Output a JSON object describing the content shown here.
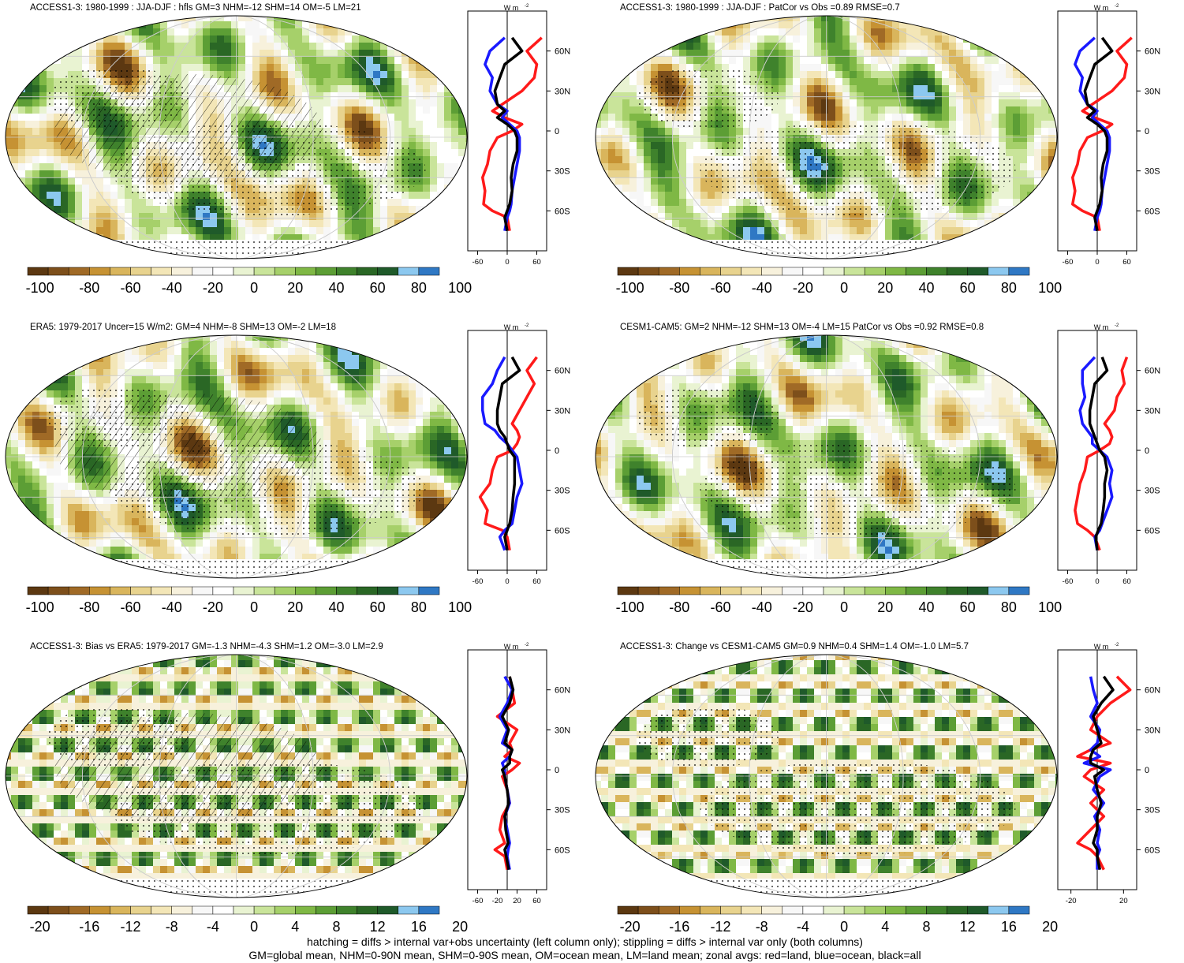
{
  "panels": [
    {
      "title": "ACCESS1-3: 1980-1999 : JJA-DJF : hfls GM=3 NHM=-12 SHM=14 OM=-5 LM=21",
      "hatch": true,
      "palette": "full"
    },
    {
      "title": "ACCESS1-3: 1980-1999 : JJA-DJF : PatCor vs Obs =0.89 RMSE=0.7",
      "hatch": false,
      "palette": "full"
    },
    {
      "title": "ERA5: 1979-2017 Uncer=15 W/m2: GM=4 NHM=-8 SHM=13 OM=-2 LM=18",
      "hatch": true,
      "palette": "full"
    },
    {
      "title": "CESM1-CAM5: GM=2 NHM=-12 SHM=13 OM=-4 LM=15 PatCor vs Obs =0.92 RMSE=0.8",
      "hatch": false,
      "palette": "full"
    },
    {
      "title": "ACCESS1-3: Bias vs ERA5: 1979-2017 GM=-1.3 NHM=-4.3 SHM=1.2 OM=-3.0 LM=2.9",
      "hatch": true,
      "palette": "diff"
    },
    {
      "title": "ACCESS1-3: Change vs CESM1-CAM5 GM=0.9 NHM=0.4 SHM=1.4 OM=-1.0 LM=5.7",
      "hatch": false,
      "palette": "diff"
    }
  ],
  "colorbars": {
    "full": {
      "labels": [
        "-100",
        "-80",
        "-60",
        "-40",
        "-20",
        "0",
        "20",
        "40",
        "60",
        "80",
        "100"
      ]
    },
    "diff": {
      "labels": [
        "-20",
        "-16",
        "-12",
        "-8",
        "-4",
        "0",
        "4",
        "8",
        "12",
        "16",
        "20"
      ]
    },
    "colors": [
      "#5c3811",
      "#7d4f1b",
      "#a06a26",
      "#c69233",
      "#d9b55c",
      "#e8d38e",
      "#f3e6b7",
      "#f7f1dc",
      "#f7f7f7",
      "#ffffff",
      "#e9f3d2",
      "#c9e49a",
      "#a6d06a",
      "#7fb845",
      "#5c9e35",
      "#3f822c",
      "#2a6725",
      "#1f5a2a",
      "#8cc8ef",
      "#2f78c4"
    ]
  },
  "zonal_unit": "W m",
  "zonal_unit_exp": "-2",
  "lat_labels": [
    "60N",
    "30N",
    "0",
    "30S",
    "60S"
  ],
  "zonal_xticks": {
    "full": [
      "-60",
      "0",
      "60"
    ],
    "diff_left": [
      "-60",
      "-20",
      "20",
      "60"
    ],
    "diff_right": [
      "-20",
      "20"
    ]
  },
  "footer": [
    "hatching = diffs > internal var+obs uncertainty (left column only); stippling = diffs > internal var only (both columns)",
    "GM=global mean, NHM=0-90N mean, SHM=0-90S mean, OM=ocean mean, LM=land mean; zonal avgs: red=land, blue=ocean, black=all"
  ],
  "chart_data": [
    {
      "type": "line",
      "title": "ACCESS1-3: 1980-1999 : JJA-DJF : hfls",
      "xlabel": "W m-2",
      "ylabel": "",
      "xlim": [
        -80,
        80
      ],
      "ylim": [
        -90,
        90
      ],
      "series": [
        {
          "name": "land",
          "x": [
            5,
            0,
            -30,
            -48,
            -45,
            -50,
            -40,
            -35,
            -20,
            10,
            30,
            -5,
            -30,
            -10,
            30,
            55,
            60,
            40,
            70
          ],
          "y": [
            -75,
            -65,
            -60,
            -55,
            -45,
            -35,
            -25,
            -15,
            -5,
            0,
            5,
            10,
            15,
            20,
            30,
            40,
            50,
            60,
            70
          ]
        },
        {
          "name": "ocean",
          "x": [
            -5,
            0,
            5,
            8,
            10,
            15,
            20,
            25,
            25,
            20,
            5,
            -10,
            0,
            -20,
            -35,
            -30,
            -45,
            -35,
            -5
          ],
          "y": [
            -75,
            -65,
            -60,
            -55,
            -45,
            -35,
            -25,
            -15,
            -5,
            0,
            5,
            10,
            15,
            20,
            30,
            40,
            50,
            60,
            70
          ]
        },
        {
          "name": "all",
          "x": [
            0,
            -5,
            0,
            5,
            10,
            8,
            12,
            20,
            20,
            15,
            0,
            -20,
            -5,
            -20,
            -25,
            -15,
            -5,
            30,
            10
          ],
          "y": [
            -75,
            -65,
            -60,
            -55,
            -45,
            -35,
            -25,
            -15,
            -5,
            0,
            5,
            10,
            15,
            20,
            30,
            40,
            50,
            60,
            70
          ]
        }
      ]
    },
    {
      "type": "line",
      "title": "ACCESS1-3: PatCor vs Obs",
      "xlabel": "W m-2",
      "ylabel": "",
      "xlim": [
        -80,
        80
      ],
      "ylim": [
        -90,
        90
      ],
      "series": [
        {
          "name": "land",
          "x": [
            5,
            0,
            -30,
            -50,
            -45,
            -50,
            -40,
            -35,
            -20,
            10,
            30,
            -5,
            -30,
            -10,
            30,
            55,
            60,
            40,
            70
          ],
          "y": [
            -75,
            -65,
            -60,
            -55,
            -45,
            -35,
            -25,
            -15,
            -5,
            0,
            5,
            10,
            15,
            20,
            30,
            40,
            50,
            60,
            70
          ]
        },
        {
          "name": "ocean",
          "x": [
            -5,
            0,
            5,
            8,
            10,
            15,
            20,
            25,
            25,
            20,
            5,
            -10,
            0,
            -20,
            -35,
            -30,
            -45,
            -35,
            -5
          ],
          "y": [
            -75,
            -65,
            -60,
            -55,
            -45,
            -35,
            -25,
            -15,
            -5,
            0,
            5,
            10,
            15,
            20,
            30,
            40,
            50,
            60,
            70
          ]
        },
        {
          "name": "all",
          "x": [
            0,
            -5,
            0,
            5,
            10,
            8,
            12,
            20,
            20,
            15,
            0,
            -20,
            -5,
            -20,
            -25,
            -15,
            -5,
            30,
            10
          ],
          "y": [
            -75,
            -65,
            -60,
            -55,
            -45,
            -35,
            -25,
            -15,
            -5,
            0,
            5,
            10,
            15,
            20,
            30,
            40,
            50,
            60,
            70
          ]
        }
      ]
    },
    {
      "type": "line",
      "title": "ERA5: 1979-2017",
      "xlabel": "W m-2",
      "ylabel": "",
      "xlim": [
        -80,
        80
      ],
      "ylim": [
        -90,
        90
      ],
      "series": [
        {
          "name": "land",
          "x": [
            5,
            0,
            -10,
            -45,
            -40,
            -55,
            -35,
            -30,
            -20,
            10,
            20,
            25,
            20,
            10,
            25,
            40,
            55,
            40,
            60
          ],
          "y": [
            -75,
            -65,
            -60,
            -55,
            -45,
            -35,
            -25,
            -15,
            -5,
            0,
            5,
            10,
            15,
            20,
            30,
            40,
            50,
            60,
            70
          ]
        },
        {
          "name": "ocean",
          "x": [
            -5,
            -15,
            -5,
            10,
            15,
            20,
            30,
            25,
            20,
            10,
            0,
            -15,
            -25,
            -45,
            -50,
            -50,
            -30,
            -20,
            -5
          ],
          "y": [
            -75,
            -65,
            -60,
            -55,
            -45,
            -35,
            -25,
            -15,
            -5,
            0,
            5,
            10,
            15,
            20,
            30,
            40,
            50,
            60,
            70
          ]
        },
        {
          "name": "all",
          "x": [
            0,
            -5,
            0,
            5,
            10,
            12,
            15,
            15,
            15,
            5,
            0,
            -5,
            -15,
            -20,
            -20,
            -15,
            -10,
            25,
            10
          ],
          "y": [
            -75,
            -65,
            -60,
            -55,
            -45,
            -35,
            -25,
            -15,
            -5,
            0,
            5,
            10,
            15,
            20,
            30,
            40,
            50,
            60,
            70
          ]
        }
      ]
    },
    {
      "type": "line",
      "title": "CESM1-CAM5",
      "xlabel": "W m-2",
      "ylabel": "",
      "xlim": [
        -80,
        80
      ],
      "ylim": [
        -90,
        90
      ],
      "series": [
        {
          "name": "land",
          "x": [
            5,
            -5,
            -20,
            -40,
            -45,
            -40,
            -35,
            -25,
            -20,
            5,
            25,
            30,
            25,
            15,
            35,
            40,
            55,
            50,
            60
          ],
          "y": [
            -75,
            -65,
            -60,
            -55,
            -45,
            -35,
            -25,
            -15,
            -5,
            0,
            5,
            10,
            15,
            20,
            30,
            40,
            50,
            60,
            70
          ]
        },
        {
          "name": "ocean",
          "x": [
            0,
            -5,
            5,
            10,
            20,
            30,
            25,
            30,
            20,
            5,
            -10,
            -10,
            -20,
            -30,
            -35,
            -25,
            -30,
            -30,
            -5
          ],
          "y": [
            -75,
            -65,
            -60,
            -55,
            -45,
            -35,
            -25,
            -15,
            -5,
            0,
            5,
            10,
            15,
            20,
            30,
            40,
            50,
            60,
            70
          ]
        },
        {
          "name": "all",
          "x": [
            0,
            -3,
            2,
            8,
            12,
            15,
            15,
            20,
            15,
            5,
            0,
            -5,
            -10,
            -15,
            -15,
            -10,
            -5,
            20,
            10
          ],
          "y": [
            -75,
            -65,
            -60,
            -55,
            -45,
            -35,
            -25,
            -15,
            -5,
            0,
            5,
            10,
            15,
            20,
            30,
            40,
            50,
            60,
            70
          ]
        }
      ]
    },
    {
      "type": "line",
      "title": "ACCESS1-3: Bias vs ERA5",
      "xlabel": "",
      "ylabel": "",
      "xlim": [
        -80,
        80
      ],
      "ylim": [
        -90,
        90
      ],
      "series": [
        {
          "name": "land",
          "x": [
            0,
            -5,
            -25,
            -5,
            -15,
            -10,
            5,
            0,
            -10,
            10,
            25,
            -5,
            10,
            5,
            20,
            -20,
            15,
            10,
            5
          ],
          "y": [
            -75,
            -65,
            -60,
            -55,
            -45,
            -35,
            -25,
            -15,
            -5,
            0,
            5,
            10,
            15,
            20,
            30,
            40,
            50,
            60,
            70
          ]
        },
        {
          "name": "ocean",
          "x": [
            5,
            0,
            2,
            5,
            0,
            -5,
            5,
            0,
            -5,
            -5,
            -10,
            5,
            10,
            -10,
            0,
            -15,
            0,
            10,
            -5
          ],
          "y": [
            -75,
            -65,
            -60,
            -55,
            -45,
            -35,
            -25,
            -15,
            -5,
            0,
            5,
            10,
            15,
            20,
            30,
            40,
            50,
            60,
            70
          ]
        },
        {
          "name": "all",
          "x": [
            3,
            -2,
            -5,
            2,
            -3,
            -5,
            3,
            0,
            -5,
            -10,
            5,
            5,
            10,
            -5,
            3,
            -10,
            5,
            12,
            5
          ],
          "y": [
            -75,
            -65,
            -60,
            -55,
            -45,
            -35,
            -25,
            -15,
            -5,
            0,
            5,
            10,
            15,
            20,
            30,
            40,
            50,
            60,
            70
          ]
        }
      ]
    },
    {
      "type": "line",
      "title": "ACCESS1-3: Change vs CESM1-CAM5",
      "xlabel": "",
      "ylabel": "",
      "xlim": [
        -30,
        30
      ],
      "ylim": [
        -90,
        90
      ],
      "series": [
        {
          "name": "land",
          "x": [
            5,
            0,
            -5,
            -15,
            -5,
            5,
            -5,
            5,
            -10,
            -5,
            10,
            -15,
            -5,
            10,
            -5,
            0,
            10,
            25,
            15
          ],
          "y": [
            -75,
            -65,
            -60,
            -55,
            -45,
            -35,
            -25,
            -15,
            -5,
            0,
            5,
            10,
            15,
            20,
            30,
            40,
            50,
            60,
            70
          ]
        },
        {
          "name": "ocean",
          "x": [
            0,
            0,
            2,
            0,
            2,
            -2,
            5,
            -3,
            2,
            10,
            -10,
            2,
            -5,
            0,
            2,
            -5,
            0,
            -3,
            -5
          ],
          "y": [
            -75,
            -65,
            -60,
            -55,
            -45,
            -35,
            -25,
            -15,
            -5,
            0,
            5,
            10,
            15,
            20,
            30,
            40,
            50,
            60,
            70
          ]
        },
        {
          "name": "all",
          "x": [
            2,
            0,
            0,
            -3,
            0,
            0,
            3,
            0,
            -2,
            5,
            -5,
            -5,
            -3,
            3,
            0,
            -3,
            3,
            12,
            5
          ],
          "y": [
            -75,
            -65,
            -60,
            -55,
            -45,
            -35,
            -25,
            -15,
            -5,
            0,
            5,
            10,
            15,
            20,
            30,
            40,
            50,
            60,
            70
          ]
        }
      ]
    }
  ]
}
